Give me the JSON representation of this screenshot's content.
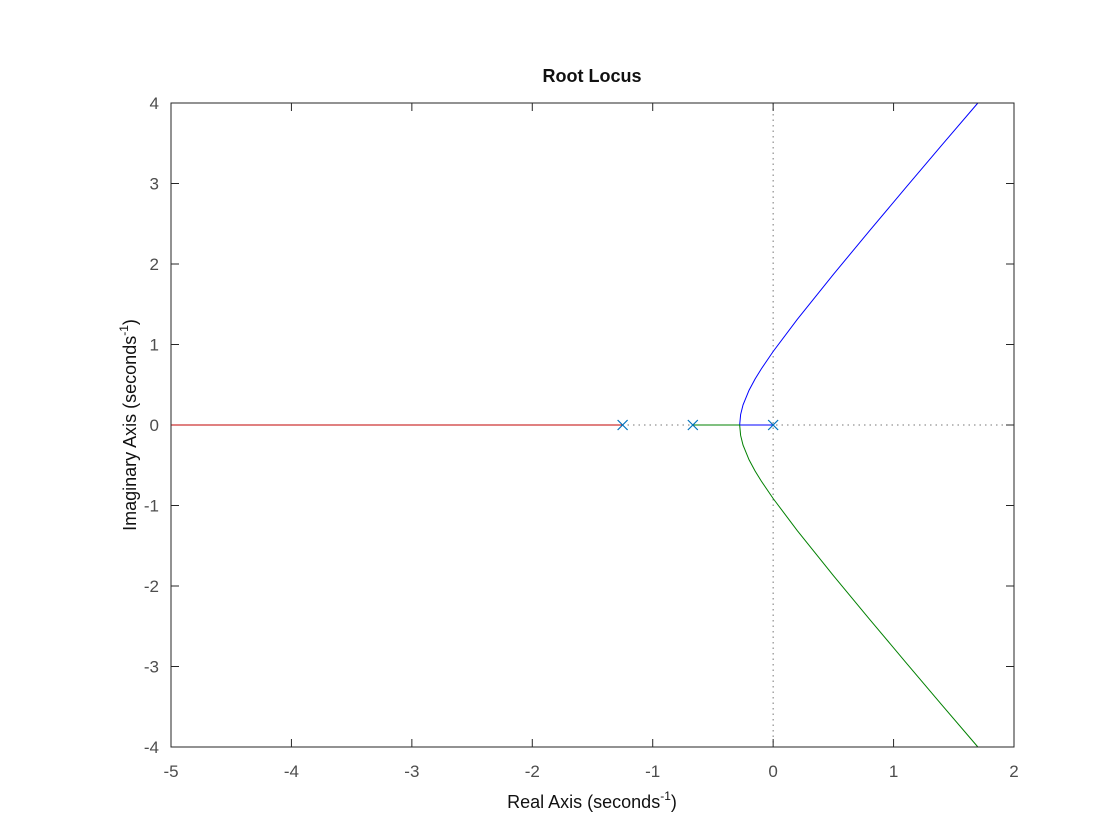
{
  "chart_data": {
    "type": "line",
    "title": "Root Locus",
    "xlabel": {
      "text": "Real Axis (seconds",
      "sup": "-1",
      "end": ")"
    },
    "ylabel": {
      "text": "Imaginary Axis (seconds",
      "sup": "-1",
      "end": ")"
    },
    "xlim": [
      -5,
      2
    ],
    "ylim": [
      -4,
      4
    ],
    "xticks": [
      -5,
      -4,
      -3,
      -2,
      -1,
      0,
      1,
      2
    ],
    "yticks": [
      -4,
      -3,
      -2,
      -1,
      0,
      1,
      2,
      3,
      4
    ],
    "series": [
      {
        "color": "#0000ff",
        "x": [
          0,
          -0.278,
          -0.27,
          -0.25,
          -0.2,
          -0.15,
          -0.1,
          0,
          0.2,
          0.5,
          0.8,
          1.1,
          1.4,
          1.7
        ],
        "values": [
          0,
          0,
          0.13,
          0.25,
          0.432,
          0.571,
          0.693,
          0.913,
          1.311,
          1.871,
          2.412,
          2.946,
          3.476,
          4.0
        ]
      },
      {
        "color": "#008000",
        "x": [
          -0.667,
          -0.278,
          -0.27,
          -0.25,
          -0.2,
          -0.15,
          -0.1,
          0,
          0.2,
          0.5,
          0.8,
          1.1,
          1.4,
          1.7
        ],
        "values": [
          0,
          0,
          -0.13,
          -0.25,
          -0.432,
          -0.571,
          -0.693,
          -0.913,
          -1.311,
          -1.871,
          -2.412,
          -2.946,
          -3.476,
          -4.0
        ]
      },
      {
        "color": "#c00000",
        "x": [
          -1.25,
          -5
        ],
        "values": [
          0,
          0
        ]
      }
    ],
    "poles": {
      "color": "#0072bd",
      "x": [
        -1.25,
        -0.667,
        0
      ],
      "values": [
        0,
        0,
        0
      ]
    }
  }
}
